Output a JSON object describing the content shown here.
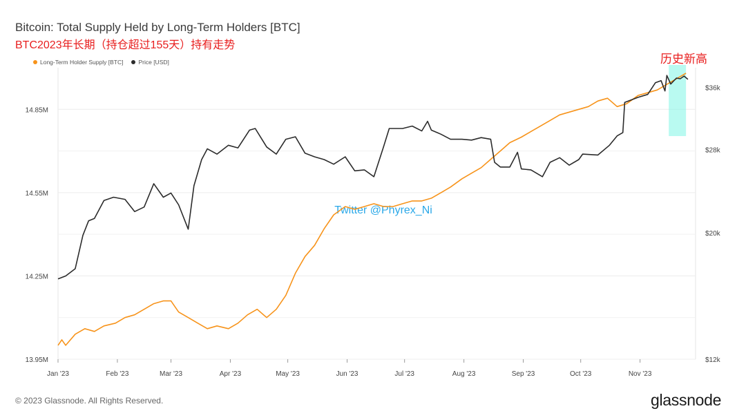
{
  "header": {
    "title": "Bitcoin: Total Supply Held by Long-Term Holders [BTC]",
    "subtitle": "BTC2023年长期（持仓超过155天）持有走势",
    "annotation": "历史新高"
  },
  "legend": {
    "items": [
      {
        "label": "Long-Term Holder Supply [BTC]",
        "color": "#f7931a"
      },
      {
        "label": "Price [USD]",
        "color": "#2b2b2b"
      }
    ]
  },
  "watermark": "Twitter @Phyrex_Ni",
  "footer": {
    "copyright": "© 2023 Glassnode. All Rights Reserved.",
    "logo": "glassnode"
  },
  "chart_data": {
    "type": "line",
    "x_ticks": [
      "Jan '23",
      "Feb '23",
      "Mar '23",
      "Apr '23",
      "May '23",
      "Jun '23",
      "Jul '23",
      "Aug '23",
      "Sep '23",
      "Oct '23",
      "Nov '23"
    ],
    "y_left": {
      "ticks": [
        "13.95M",
        "14.25M",
        "14.55M",
        "14.85M"
      ],
      "ylim": [
        13.95,
        15.0
      ],
      "unit": "M BTC"
    },
    "y_right": {
      "ticks": [
        "$12k",
        "$20k",
        "$28k",
        "$36k"
      ],
      "scale": "log",
      "ylim": [
        12000,
        39000
      ]
    },
    "grid": true,
    "highlight": {
      "x_range": [
        "2023-11-16",
        "2023-11-25"
      ],
      "color": "#7ff5e6"
    },
    "series": [
      {
        "name": "Long-Term Holder Supply [BTC]",
        "color": "#f7931a",
        "axis": "left",
        "points": [
          [
            "2023-01-01",
            14.0
          ],
          [
            "2023-01-03",
            14.02
          ],
          [
            "2023-01-05",
            14.0
          ],
          [
            "2023-01-10",
            14.04
          ],
          [
            "2023-01-15",
            14.06
          ],
          [
            "2023-01-20",
            14.05
          ],
          [
            "2023-01-25",
            14.07
          ],
          [
            "2023-01-31",
            14.08
          ],
          [
            "2023-02-05",
            14.1
          ],
          [
            "2023-02-10",
            14.11
          ],
          [
            "2023-02-15",
            14.13
          ],
          [
            "2023-02-20",
            14.15
          ],
          [
            "2023-02-25",
            14.16
          ],
          [
            "2023-03-01",
            14.16
          ],
          [
            "2023-03-05",
            14.12
          ],
          [
            "2023-03-10",
            14.1
          ],
          [
            "2023-03-15",
            14.08
          ],
          [
            "2023-03-20",
            14.06
          ],
          [
            "2023-03-25",
            14.07
          ],
          [
            "2023-03-31",
            14.06
          ],
          [
            "2023-04-05",
            14.08
          ],
          [
            "2023-04-10",
            14.11
          ],
          [
            "2023-04-15",
            14.13
          ],
          [
            "2023-04-20",
            14.1
          ],
          [
            "2023-04-25",
            14.13
          ],
          [
            "2023-04-30",
            14.18
          ],
          [
            "2023-05-05",
            14.26
          ],
          [
            "2023-05-10",
            14.32
          ],
          [
            "2023-05-15",
            14.36
          ],
          [
            "2023-05-20",
            14.42
          ],
          [
            "2023-05-25",
            14.47
          ],
          [
            "2023-05-31",
            14.5
          ],
          [
            "2023-06-05",
            14.49
          ],
          [
            "2023-06-10",
            14.5
          ],
          [
            "2023-06-15",
            14.51
          ],
          [
            "2023-06-20",
            14.5
          ],
          [
            "2023-06-25",
            14.5
          ],
          [
            "2023-06-30",
            14.51
          ],
          [
            "2023-07-05",
            14.52
          ],
          [
            "2023-07-10",
            14.52
          ],
          [
            "2023-07-15",
            14.53
          ],
          [
            "2023-07-20",
            14.55
          ],
          [
            "2023-07-25",
            14.57
          ],
          [
            "2023-07-31",
            14.6
          ],
          [
            "2023-08-05",
            14.62
          ],
          [
            "2023-08-10",
            14.64
          ],
          [
            "2023-08-15",
            14.67
          ],
          [
            "2023-08-20",
            14.7
          ],
          [
            "2023-08-25",
            14.73
          ],
          [
            "2023-08-31",
            14.75
          ],
          [
            "2023-09-05",
            14.77
          ],
          [
            "2023-09-10",
            14.79
          ],
          [
            "2023-09-15",
            14.81
          ],
          [
            "2023-09-20",
            14.83
          ],
          [
            "2023-09-25",
            14.84
          ],
          [
            "2023-09-30",
            14.85
          ],
          [
            "2023-10-05",
            14.86
          ],
          [
            "2023-10-10",
            14.88
          ],
          [
            "2023-10-15",
            14.89
          ],
          [
            "2023-10-20",
            14.86
          ],
          [
            "2023-10-25",
            14.87
          ],
          [
            "2023-10-31",
            14.9
          ],
          [
            "2023-11-05",
            14.91
          ],
          [
            "2023-11-10",
            14.92
          ],
          [
            "2023-11-15",
            14.94
          ],
          [
            "2023-11-20",
            14.96
          ],
          [
            "2023-11-25",
            14.98
          ]
        ]
      },
      {
        "name": "Price [USD]",
        "color": "#2b2b2b",
        "axis": "right",
        "points": [
          [
            "2023-01-01",
            16600
          ],
          [
            "2023-01-05",
            16800
          ],
          [
            "2023-01-10",
            17300
          ],
          [
            "2023-01-14",
            19800
          ],
          [
            "2023-01-17",
            21000
          ],
          [
            "2023-01-20",
            21200
          ],
          [
            "2023-01-25",
            22800
          ],
          [
            "2023-01-30",
            23100
          ],
          [
            "2023-02-05",
            22900
          ],
          [
            "2023-02-10",
            21800
          ],
          [
            "2023-02-15",
            22200
          ],
          [
            "2023-02-20",
            24400
          ],
          [
            "2023-02-25",
            23100
          ],
          [
            "2023-03-01",
            23500
          ],
          [
            "2023-03-05",
            22400
          ],
          [
            "2023-03-10",
            20300
          ],
          [
            "2023-03-13",
            24200
          ],
          [
            "2023-03-17",
            26900
          ],
          [
            "2023-03-20",
            28100
          ],
          [
            "2023-03-25",
            27500
          ],
          [
            "2023-03-31",
            28500
          ],
          [
            "2023-04-05",
            28200
          ],
          [
            "2023-04-11",
            30300
          ],
          [
            "2023-04-14",
            30500
          ],
          [
            "2023-04-20",
            28300
          ],
          [
            "2023-04-25",
            27500
          ],
          [
            "2023-04-30",
            29200
          ],
          [
            "2023-05-05",
            29500
          ],
          [
            "2023-05-10",
            27600
          ],
          [
            "2023-05-15",
            27200
          ],
          [
            "2023-05-20",
            26900
          ],
          [
            "2023-05-25",
            26400
          ],
          [
            "2023-05-31",
            27200
          ],
          [
            "2023-06-05",
            25700
          ],
          [
            "2023-06-10",
            25800
          ],
          [
            "2023-06-15",
            25100
          ],
          [
            "2023-06-20",
            28300
          ],
          [
            "2023-06-23",
            30500
          ],
          [
            "2023-06-30",
            30500
          ],
          [
            "2023-07-05",
            30800
          ],
          [
            "2023-07-10",
            30200
          ],
          [
            "2023-07-13",
            31400
          ],
          [
            "2023-07-15",
            30300
          ],
          [
            "2023-07-20",
            29800
          ],
          [
            "2023-07-25",
            29200
          ],
          [
            "2023-07-31",
            29200
          ],
          [
            "2023-08-05",
            29100
          ],
          [
            "2023-08-10",
            29400
          ],
          [
            "2023-08-15",
            29200
          ],
          [
            "2023-08-17",
            26600
          ],
          [
            "2023-08-20",
            26100
          ],
          [
            "2023-08-25",
            26100
          ],
          [
            "2023-08-29",
            27700
          ],
          [
            "2023-08-31",
            25900
          ],
          [
            "2023-09-05",
            25800
          ],
          [
            "2023-09-11",
            25100
          ],
          [
            "2023-09-15",
            26600
          ],
          [
            "2023-09-20",
            27100
          ],
          [
            "2023-09-25",
            26300
          ],
          [
            "2023-09-30",
            26900
          ],
          [
            "2023-10-02",
            27500
          ],
          [
            "2023-10-10",
            27400
          ],
          [
            "2023-10-16",
            28500
          ],
          [
            "2023-10-20",
            29600
          ],
          [
            "2023-10-23",
            30000
          ],
          [
            "2023-10-24",
            33900
          ],
          [
            "2023-10-31",
            34600
          ],
          [
            "2023-11-05",
            35000
          ],
          [
            "2023-11-09",
            36700
          ],
          [
            "2023-11-12",
            37000
          ],
          [
            "2023-11-14",
            35500
          ],
          [
            "2023-11-15",
            37800
          ],
          [
            "2023-11-17",
            36500
          ],
          [
            "2023-11-20",
            37400
          ],
          [
            "2023-11-22",
            37300
          ],
          [
            "2023-11-24",
            37700
          ],
          [
            "2023-11-26",
            37200
          ]
        ]
      }
    ]
  }
}
